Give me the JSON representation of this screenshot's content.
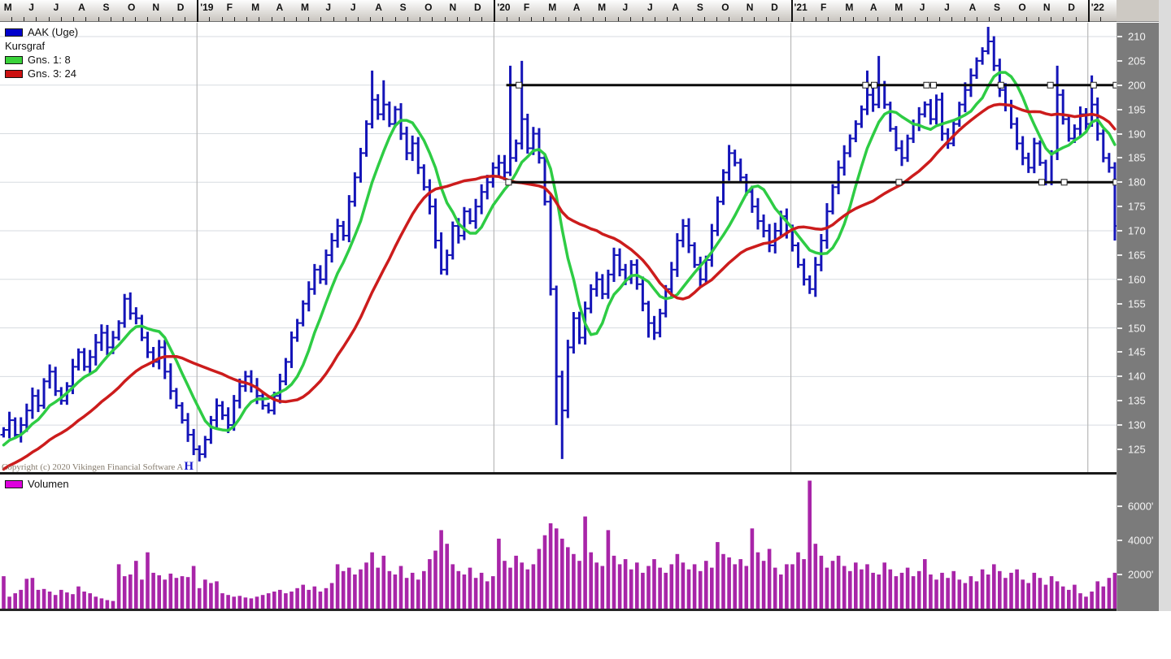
{
  "price_panel": {
    "legend": {
      "series_label": "AAK (Uge)",
      "type_label": "Kursgraf",
      "ma_fast_label": "Gns. 1: 8",
      "ma_slow_label": "Gns. 3: 24"
    }
  },
  "volume_panel": {
    "legend_label": "Volumen"
  },
  "footer": {
    "copyright": "Copyright (c) 2020 Vikingen Financial Software A",
    "logo_mark": "H"
  },
  "colors": {
    "bar": "#1414b8",
    "ma_fast": "#2ecc44",
    "ma_slow": "#cc1c1c",
    "volume_bar": "#a825a8",
    "trendline": "#0a0a0a",
    "legend_bar_swatch": "#0000cc",
    "legend_ma_fast_swatch": "#3ad33a",
    "legend_ma_slow_swatch": "#cc1111",
    "legend_volume_swatch": "#dd00dd",
    "axis_bg": "#7b7b7b",
    "gridline": "#d7dbe0",
    "year_gridline": "#b9b9b9"
  },
  "chart_data": {
    "type": "ohlc",
    "period": "weekly",
    "title": "AAK (Uge)",
    "x_axis": {
      "month_labels": [
        "M",
        "J",
        "J",
        "A",
        "S",
        "O",
        "N",
        "D",
        "'19",
        "F",
        "M",
        "A",
        "M",
        "J",
        "J",
        "A",
        "S",
        "O",
        "N",
        "D",
        "'20",
        "F",
        "M",
        "A",
        "M",
        "J",
        "J",
        "A",
        "S",
        "O",
        "N",
        "D",
        "'21",
        "F",
        "M",
        "A",
        "M",
        "J",
        "J",
        "A",
        "S",
        "O",
        "N",
        "D",
        "'22"
      ]
    },
    "price_axis": {
      "ticks": [
        210,
        205,
        200,
        195,
        190,
        185,
        180,
        175,
        170,
        165,
        160,
        155,
        150,
        145,
        140,
        135,
        130,
        125
      ],
      "gridline_step": 10,
      "ylim": [
        121,
        213
      ]
    },
    "volume_axis": {
      "ticks": [
        {
          "label": "6000'",
          "value": 6000
        },
        {
          "label": "4000'",
          "value": 4000
        },
        {
          "label": "2000'",
          "value": 2000
        }
      ]
    },
    "series": {
      "name": "AAK",
      "ma_fast_period": 8,
      "ma_slow_period": 24,
      "ma_warmup_closes": [
        112,
        113,
        114,
        115,
        116,
        116,
        117,
        118,
        118,
        119,
        120,
        120,
        121,
        121,
        122,
        122,
        123,
        123,
        124,
        125,
        125,
        126,
        127,
        128
      ],
      "closes": [
        129,
        131,
        128,
        130,
        133,
        136,
        134,
        139,
        141,
        137,
        135,
        138,
        142,
        145,
        142,
        144,
        147,
        149,
        146,
        148,
        151,
        156,
        153,
        152,
        148,
        145,
        143,
        146,
        141,
        137,
        134,
        131,
        128,
        125,
        124,
        127,
        131,
        134,
        132,
        130,
        135,
        138,
        140,
        138,
        136,
        134,
        133,
        136,
        139,
        143,
        148,
        151,
        155,
        158,
        162,
        160,
        165,
        168,
        171,
        169,
        176,
        181,
        186,
        192,
        197,
        194,
        196,
        192,
        195,
        190,
        186,
        188,
        183,
        179,
        175,
        168,
        162,
        165,
        171,
        169,
        174,
        172,
        175,
        178,
        180,
        183,
        184,
        182,
        185,
        188,
        193,
        187,
        190,
        185,
        176,
        158,
        140,
        133,
        146,
        152,
        148,
        154,
        158,
        160,
        157,
        161,
        165,
        162,
        160,
        163,
        159,
        155,
        151,
        149,
        153,
        158,
        162,
        168,
        171,
        167,
        163,
        160,
        164,
        170,
        176,
        182,
        186,
        184,
        181,
        178,
        175,
        172,
        170,
        167,
        170,
        173,
        170,
        167,
        163,
        160,
        158,
        163,
        168,
        174,
        179,
        183,
        186,
        189,
        192,
        195,
        198,
        196,
        200,
        196,
        191,
        187,
        185,
        189,
        192,
        194,
        196,
        193,
        197,
        190,
        188,
        192,
        196,
        199,
        202,
        205,
        207,
        209,
        204,
        199,
        196,
        192,
        188,
        185,
        183,
        188,
        184,
        180,
        186,
        198,
        193,
        189,
        191,
        194,
        192,
        196,
        190,
        185,
        183,
        171
      ],
      "high_overrides": {
        "21": 157,
        "64": 203,
        "66": 201,
        "88": 204,
        "90": 205,
        "150": 203,
        "152": 206,
        "171": 212,
        "183": 204,
        "189": 202
      },
      "low_overrides": {
        "34": 122.5,
        "76": 161,
        "96": 130,
        "97": 123,
        "112": 148,
        "140": 157,
        "193": 168
      }
    },
    "volume": [
      1900,
      700,
      900,
      1100,
      1750,
      1800,
      1100,
      1150,
      1000,
      800,
      1100,
      950,
      850,
      1300,
      1000,
      900,
      700,
      600,
      500,
      450,
      2600,
      1900,
      2000,
      2800,
      1700,
      3300,
      2100,
      1950,
      1700,
      2050,
      1800,
      1900,
      1850,
      2500,
      1200,
      1700,
      1500,
      1600,
      900,
      800,
      700,
      750,
      650,
      600,
      700,
      800,
      900,
      1000,
      1100,
      900,
      1000,
      1200,
      1400,
      1100,
      1300,
      1000,
      1200,
      1500,
      2600,
      2200,
      2400,
      2000,
      2300,
      2700,
      3300,
      2400,
      3100,
      2200,
      2000,
      2500,
      1800,
      2100,
      1700,
      2200,
      2900,
      3400,
      4600,
      3800,
      2600,
      2200,
      2000,
      2400,
      1800,
      2100,
      1600,
      1900,
      4100,
      2800,
      2400,
      3100,
      2700,
      2300,
      2600,
      3500,
      4300,
      5000,
      4700,
      4100,
      3600,
      3200,
      2800,
      5400,
      3300,
      2700,
      2500,
      4600,
      3100,
      2600,
      2900,
      2300,
      2700,
      2100,
      2500,
      2900,
      2400,
      2100,
      2600,
      3200,
      2700,
      2300,
      2600,
      2200,
      2800,
      2400,
      3900,
      3200,
      3000,
      2600,
      2900,
      2500,
      4700,
      3300,
      2800,
      3500,
      2400,
      2000,
      2600,
      2600,
      3300,
      2900,
      7500,
      3800,
      3100,
      2400,
      2800,
      3100,
      2500,
      2200,
      2700,
      2300,
      2600,
      2100,
      2000,
      2700,
      2300,
      1900,
      2100,
      2400,
      1900,
      2200,
      2900,
      2000,
      1700,
      2100,
      1800,
      2200,
      1700,
      1500,
      1900,
      1600,
      2300,
      2000,
      2600,
      2200,
      1800,
      2100,
      2300,
      1700,
      1500,
      2100,
      1800,
      1400,
      1900,
      1600,
      1300,
      1100,
      1400,
      900,
      700,
      1000,
      1600,
      1300,
      1800,
      2100
    ],
    "trendlines": [
      {
        "name": "resistance-line",
        "price": 200,
        "start_week": 87.3,
        "end_week": 193.2,
        "handle_weeks": [
          89.5,
          149.7,
          151.2,
          160.3,
          161.5,
          173.2,
          181.8,
          189.3,
          193.2
        ]
      },
      {
        "name": "support-line",
        "price": 180,
        "start_week": 87.3,
        "end_week": 193.2,
        "handle_weeks": [
          87.7,
          155.5,
          180.3,
          184.2,
          193.2
        ]
      }
    ]
  }
}
